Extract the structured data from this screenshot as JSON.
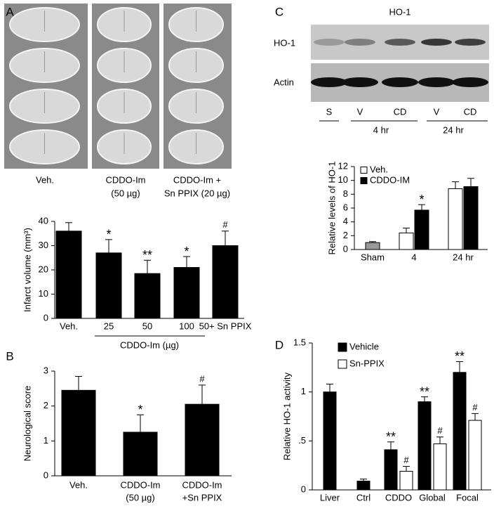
{
  "panel_letters": [
    "A",
    "B",
    "C",
    "D"
  ],
  "figure_a": {
    "captions": [
      [
        "Veh."
      ],
      [
        "CDDO-Im",
        "(50 µg)"
      ],
      [
        "CDDO-Im +",
        "Sn PPIX (20 µg)"
      ]
    ]
  },
  "figure_c": {
    "title": "HO-1",
    "rows": [
      "HO-1",
      "Actin"
    ],
    "lanes": [
      "S",
      "V",
      "CD",
      "V",
      "CD"
    ],
    "groups": [
      "4 hr",
      "24 hr"
    ]
  },
  "chart_data": [
    {
      "type": "bar",
      "ylabel": "Infarct volume (mm³)",
      "categories": [
        "Veh.",
        "25",
        "50",
        "100",
        "50+ Sn PPIX"
      ],
      "group_label": "CDDO-Im (µg)",
      "series": [
        {
          "color": "#000000",
          "values": [
            36,
            27,
            18.5,
            21,
            30
          ],
          "errors": [
            3.5,
            5.5,
            5.5,
            4.5,
            6
          ],
          "annotations": [
            null,
            "*",
            "**",
            "*",
            "#"
          ]
        }
      ],
      "ylim": [
        0,
        40
      ],
      "yticks": [
        0,
        10,
        20,
        30,
        40
      ]
    },
    {
      "type": "bar",
      "ylabel": "Neurological score",
      "categories": [
        [
          "Veh."
        ],
        [
          "CDDO-Im",
          "(50 µg)"
        ],
        [
          "CDDO-Im",
          "+Sn PPIX"
        ]
      ],
      "series": [
        {
          "color": "#000000",
          "values": [
            2.45,
            1.25,
            2.05
          ],
          "errors": [
            0.4,
            0.5,
            0.55
          ],
          "annotations": [
            null,
            "*",
            "#"
          ]
        }
      ],
      "ylim": [
        0,
        3
      ],
      "yticks": [
        0,
        1,
        2,
        3
      ]
    },
    {
      "type": "bar",
      "ylabel": "Relative levels of HO-1",
      "categories": [
        "Sham",
        "4",
        "24 hr"
      ],
      "legend": "upper left",
      "series": [
        {
          "name": "Veh.",
          "color": "#ffffff",
          "colors": [
            "#999999",
            "#ffffff",
            "#ffffff"
          ],
          "values": [
            1.0,
            2.4,
            8.8
          ],
          "errors": [
            0.15,
            0.7,
            1.0
          ],
          "annotations": [
            null,
            null,
            null
          ]
        },
        {
          "name": "CDDO-IM",
          "color": "#000000",
          "values": [
            null,
            5.7,
            9.1
          ],
          "errors": [
            null,
            0.8,
            1.2
          ],
          "annotations": [
            null,
            "*",
            null
          ]
        }
      ],
      "ylim": [
        0,
        12
      ],
      "yticks": [
        0,
        2,
        4,
        6,
        8,
        10,
        12
      ]
    },
    {
      "type": "bar",
      "ylabel": "Relative HO-1 activity",
      "categories": [
        "Liver",
        "Ctrl",
        "CDDO",
        "Global",
        "Focal"
      ],
      "legend": "upper left",
      "series": [
        {
          "name": "Vehicle",
          "color": "#000000",
          "values": [
            1.0,
            0.09,
            0.41,
            0.9,
            1.2
          ],
          "errors": [
            0.08,
            0.02,
            0.08,
            0.05,
            0.11
          ],
          "annotations": [
            null,
            null,
            "**",
            "**",
            "**"
          ]
        },
        {
          "name": "Sn-PPIX",
          "color": "#ffffff",
          "values": [
            null,
            null,
            0.19,
            0.47,
            0.71
          ],
          "errors": [
            null,
            null,
            0.05,
            0.07,
            0.07
          ],
          "annotations": [
            null,
            null,
            "#",
            "#",
            "#"
          ]
        }
      ],
      "ylim": [
        0,
        1.5
      ],
      "yticks": [
        0,
        {
          "value": 0.5,
          "label": ".5"
        },
        1,
        1.5
      ]
    }
  ]
}
